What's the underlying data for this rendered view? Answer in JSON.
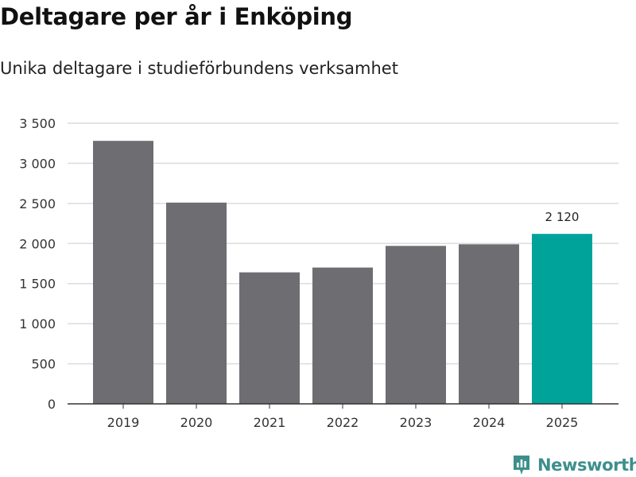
{
  "header": {
    "title": "Deltagare per år i Enköping",
    "subtitle": "Unika deltagare i studieförbundens verksamhet"
  },
  "brand": {
    "name": "Newsworthy",
    "icon": "newsworthy-logo-icon",
    "color": "#3d8f8c"
  },
  "chart_data": {
    "type": "bar",
    "title": "Deltagare per år i Enköping",
    "subtitle": "Unika deltagare i studieförbundens verksamhet",
    "xlabel": "",
    "ylabel": "",
    "categories": [
      "2019",
      "2020",
      "2021",
      "2022",
      "2023",
      "2024",
      "2025"
    ],
    "values": [
      3280,
      2510,
      1640,
      1700,
      1970,
      1990,
      2120
    ],
    "ylim": [
      0,
      3500
    ],
    "yticks": [
      0,
      500,
      1000,
      1500,
      2000,
      2500,
      3000,
      3500
    ],
    "ytick_labels": [
      "0",
      "500",
      "1 000",
      "1 500",
      "2 000",
      "2 500",
      "3 000",
      "3 500"
    ],
    "data_labels": [
      {
        "category": "2025",
        "text": "2 120"
      }
    ],
    "highlight_category": "2025",
    "colors": {
      "default": "#6e6d72",
      "highlight": "#00a39a",
      "grid": "#dcdcdc",
      "axis": "#333333"
    },
    "grid": true,
    "legend": "none"
  }
}
